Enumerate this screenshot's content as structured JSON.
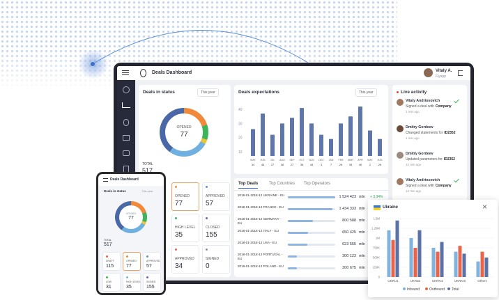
{
  "header": {
    "title": "Deals Dashboard",
    "user_name": "Vitaly A.",
    "user_role": "Flyapp"
  },
  "deals_in_status": {
    "title": "Deals in status",
    "period": "This year",
    "center_label": "OPENED",
    "center_value": 77,
    "total_label": "TOTAL",
    "total_value": 517,
    "selected_tile": 0,
    "tiles": [
      {
        "label": "OPENED",
        "value": 77,
        "color": "#f08a3a"
      },
      {
        "label": "APPROVED",
        "value": 57,
        "color": "#5b8fd9"
      },
      {
        "label": "HIGH LEVEL",
        "value": 35,
        "color": "#3cb55a"
      },
      {
        "label": "CLOSED",
        "value": 155,
        "color": "#7a5fb5"
      },
      {
        "label": "APPROVED",
        "value": 34,
        "color": "#e8654a"
      },
      {
        "label": "SIGNED",
        "value": 0,
        "color": "#8a93a8"
      }
    ]
  },
  "deals_expectations": {
    "title": "Deals expectations",
    "period": "This year",
    "ylim": [
      7,
      45
    ],
    "yticks": [
      10,
      20,
      30,
      40
    ],
    "color": "#5f77a8",
    "categories": [
      "MAY",
      "JUN",
      "JUL",
      "AUG",
      "SEP",
      "OCT",
      "NOV",
      "DEC",
      "JAN",
      "FEB",
      "MAR",
      "APR",
      "MAY",
      "JUN"
    ],
    "sub_labels": [
      "34",
      "45",
      "27",
      "36",
      "27",
      "36",
      "44",
      "3",
      "7",
      "26",
      "34",
      "46",
      "2",
      "26"
    ],
    "values": [
      26,
      37,
      22,
      30,
      34,
      41,
      30,
      22,
      19,
      30,
      35,
      42,
      25,
      19
    ]
  },
  "top_deals": {
    "tabs": [
      "Top Deals",
      "Top Countries",
      "Top Operators"
    ],
    "active_tab": 0,
    "bar_color": "#8db4e2",
    "rows": [
      {
        "deal": "2018-01-2018-12 UKRAINE - EU",
        "amount": {
          "value": 1524423,
          "label": "1 524 423"
        },
        "unit": "mln",
        "change": "+ 3,34%"
      },
      {
        "deal": "2018-01-2018-12 FRANCE - EU",
        "amount": {
          "value": 1434333,
          "label": "1 434 333"
        },
        "unit": "mln"
      },
      {
        "deal": "2018-01-2018-12 GERMANY - EU",
        "amount": {
          "value": 800588,
          "label": "800 588"
        },
        "unit": "mln"
      },
      {
        "deal": "2018-01-2018-12 ITALY - EU",
        "amount": {
          "value": 650425,
          "label": "650 425"
        },
        "unit": "mln"
      },
      {
        "deal": "2018-01-2018-12 USA - EU",
        "amount": {
          "value": 623555,
          "label": "623 555"
        },
        "unit": "mln"
      },
      {
        "deal": "2018-01-2018-12 PORTUGAL - EU",
        "amount": {
          "value": 300123,
          "label": "300 123"
        },
        "unit": "mln"
      },
      {
        "deal": "2018-01-2018-12 POLAND - EU",
        "amount": {
          "value": 300675,
          "label": "300 675"
        },
        "unit": "mln"
      }
    ]
  },
  "live_activity": {
    "title": "Live activity",
    "items": [
      {
        "name": "Vitaly Andriosovich",
        "action": "Signed a deal with",
        "target": "Company",
        "time": "1 min ago",
        "checked": true
      },
      {
        "name": "Dmitry Gordeev",
        "action": "Changed statements for",
        "target": "ID2352",
        "time": "1 min ago",
        "checked": false
      },
      {
        "name": "Dmitry Gordeev",
        "action": "Updated parameters for",
        "target": "ID2352",
        "time": "12 min ago",
        "checked": false
      },
      {
        "name": "Vitaly Andriosovich",
        "action": "Signed a deal with",
        "target": "Company",
        "time": "12 min ago",
        "checked": true
      }
    ]
  },
  "ukraine": {
    "title": "Ukraine",
    "ylim": [
      0,
      1500000
    ],
    "yticks": [
      0,
      {
        "value": 250000,
        "label": "250K"
      },
      {
        "value": 500000,
        "label": "500K"
      },
      {
        "value": 750000,
        "label": "750K"
      },
      {
        "value": 1000000,
        "label": "1M"
      },
      {
        "value": 1250000,
        "label": "1.25M"
      },
      {
        "value": 1500000,
        "label": "1.5M"
      }
    ],
    "categories": [
      "UKRU1",
      "UKRZ2",
      "UKRKI1",
      "UKRKIS",
      "Others"
    ],
    "series": [
      {
        "name": "Inbound",
        "color": "#7fb3e0",
        "values": [
          1200000,
          1000000,
          750000,
          650000,
          400000
        ]
      },
      {
        "name": "Outbound",
        "color": "#e8654a",
        "values": [
          950000,
          750000,
          650000,
          800000,
          650000
        ]
      },
      {
        "name": "Total",
        "color": "#5a72a8",
        "values": [
          1450000,
          1200000,
          900000,
          600000,
          500000
        ]
      }
    ]
  },
  "mobile": {
    "title": "Deals Dashboard",
    "card_title": "Deals in status",
    "period": "This year",
    "center_label": "OPENED",
    "center_value": 77,
    "total_label": "TOTAL",
    "total_value": 517,
    "selected_tile": 1,
    "tiles": [
      {
        "label": "DRAFT",
        "value": 115,
        "color": "#e8654a"
      },
      {
        "label": "OPENED",
        "value": 77,
        "color": "#f08a3a"
      },
      {
        "label": "APPROVED",
        "value": 57,
        "color": "#5b8fd9"
      },
      {
        "label": "LOW",
        "value": 31,
        "color": "#3cb55a"
      },
      {
        "label": "HIGH LEVEL",
        "value": 35,
        "color": "#7fb3e0"
      },
      {
        "label": "SIGNED",
        "value": 155,
        "color": "#7a5fb5"
      }
    ]
  }
}
